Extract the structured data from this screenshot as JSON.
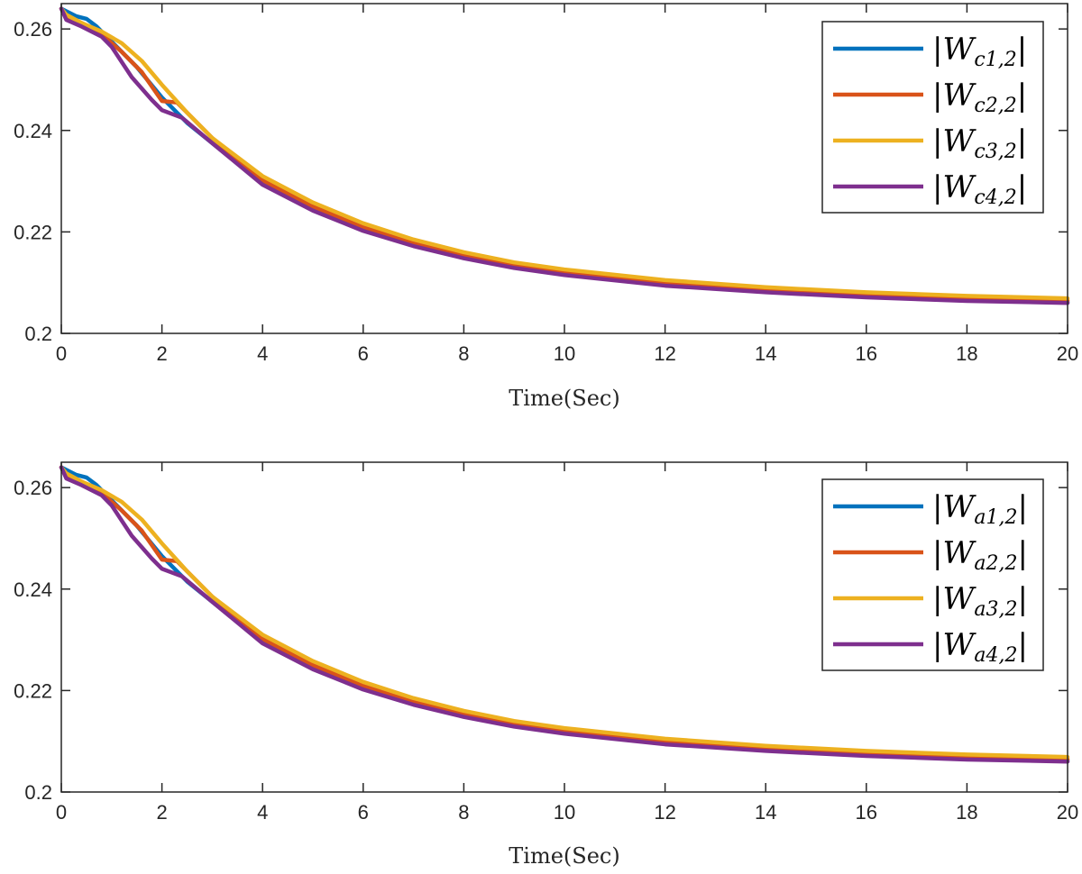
{
  "chart_data": [
    {
      "type": "line",
      "xlabel": "Time(Sec)",
      "ylabel": "",
      "xlim": [
        0,
        20
      ],
      "ylim": [
        0.2,
        0.265
      ],
      "xticks": [
        "0",
        "2",
        "4",
        "6",
        "8",
        "10",
        "12",
        "14",
        "16",
        "18",
        "20"
      ],
      "yticks": [
        "0.2",
        "0.22",
        "0.24",
        "0.26"
      ],
      "grid": false,
      "legend_position": "top-right",
      "series": [
        {
          "name": "|W_{c1,2}|",
          "legend": {
            "sym": "W",
            "sub": "c1,2"
          },
          "color": "#0072BD",
          "points": [
            [
              0,
              0.264
            ],
            [
              0.1,
              0.2635
            ],
            [
              0.3,
              0.2625
            ],
            [
              0.5,
              0.262
            ],
            [
              0.7,
              0.2605
            ],
            [
              1.0,
              0.2575
            ],
            [
              1.5,
              0.2525
            ],
            [
              2.0,
              0.2465
            ],
            [
              2.5,
              0.2415
            ],
            [
              3.0,
              0.2375
            ],
            [
              4.0,
              0.2295
            ],
            [
              5.0,
              0.2245
            ],
            [
              6.0,
              0.2205
            ],
            [
              7.0,
              0.2175
            ],
            [
              8.0,
              0.215
            ],
            [
              9.0,
              0.2131
            ],
            [
              10.0,
              0.2117
            ],
            [
              12.0,
              0.2096
            ],
            [
              14.0,
              0.2083
            ],
            [
              16.0,
              0.2073
            ],
            [
              18.0,
              0.2066
            ],
            [
              20.0,
              0.2062
            ]
          ]
        },
        {
          "name": "|W_{c2,2}|",
          "legend": {
            "sym": "W",
            "sub": "c2,2"
          },
          "color": "#D95319",
          "points": [
            [
              0,
              0.264
            ],
            [
              0.1,
              0.2625
            ],
            [
              0.4,
              0.2612
            ],
            [
              0.8,
              0.259
            ],
            [
              1.2,
              0.2555
            ],
            [
              1.6,
              0.2515
            ],
            [
              2.0,
              0.2458
            ],
            [
              2.3,
              0.2455
            ],
            [
              2.6,
              0.2425
            ],
            [
              3.0,
              0.2385
            ],
            [
              4.0,
              0.2302
            ],
            [
              5.0,
              0.225
            ],
            [
              6.0,
              0.221
            ],
            [
              7.0,
              0.2179
            ],
            [
              8.0,
              0.2154
            ],
            [
              9.0,
              0.2135
            ],
            [
              10.0,
              0.2121
            ],
            [
              12.0,
              0.21
            ],
            [
              14.0,
              0.2087
            ],
            [
              16.0,
              0.2077
            ],
            [
              18.0,
              0.207
            ],
            [
              20.0,
              0.2065
            ]
          ]
        },
        {
          "name": "|W_{c3,2}|",
          "legend": {
            "sym": "W",
            "sub": "c3,2"
          },
          "color": "#EDB120",
          "points": [
            [
              0,
              0.264
            ],
            [
              0.1,
              0.2628
            ],
            [
              0.4,
              0.2612
            ],
            [
              0.8,
              0.2595
            ],
            [
              1.2,
              0.2572
            ],
            [
              1.6,
              0.2537
            ],
            [
              2.0,
              0.249
            ],
            [
              2.5,
              0.2435
            ],
            [
              3.0,
              0.2385
            ],
            [
              4.0,
              0.231
            ],
            [
              5.0,
              0.2258
            ],
            [
              6.0,
              0.2217
            ],
            [
              7.0,
              0.2185
            ],
            [
              8.0,
              0.216
            ],
            [
              9.0,
              0.214
            ],
            [
              10.0,
              0.2126
            ],
            [
              12.0,
              0.2105
            ],
            [
              14.0,
              0.2091
            ],
            [
              16.0,
              0.2081
            ],
            [
              18.0,
              0.2074
            ],
            [
              20.0,
              0.2069
            ]
          ]
        },
        {
          "name": "|W_{c4,2}|",
          "legend": {
            "sym": "W",
            "sub": "c4,2"
          },
          "color": "#7E2F8E",
          "points": [
            [
              0,
              0.264
            ],
            [
              0.1,
              0.2618
            ],
            [
              0.4,
              0.2605
            ],
            [
              0.8,
              0.2585
            ],
            [
              1.0,
              0.2565
            ],
            [
              1.4,
              0.2505
            ],
            [
              1.8,
              0.246
            ],
            [
              2.0,
              0.244
            ],
            [
              2.4,
              0.2425
            ],
            [
              3.0,
              0.2375
            ],
            [
              4.0,
              0.2293
            ],
            [
              5.0,
              0.2242
            ],
            [
              6.0,
              0.2202
            ],
            [
              7.0,
              0.2172
            ],
            [
              8.0,
              0.2148
            ],
            [
              9.0,
              0.2129
            ],
            [
              10.0,
              0.2115
            ],
            [
              12.0,
              0.2094
            ],
            [
              14.0,
              0.2081
            ],
            [
              16.0,
              0.2071
            ],
            [
              18.0,
              0.2064
            ],
            [
              20.0,
              0.206
            ]
          ]
        }
      ]
    },
    {
      "type": "line",
      "xlabel": "Time(Sec)",
      "ylabel": "",
      "xlim": [
        0,
        20
      ],
      "ylim": [
        0.2,
        0.265
      ],
      "xticks": [
        "0",
        "2",
        "4",
        "6",
        "8",
        "10",
        "12",
        "14",
        "16",
        "18",
        "20"
      ],
      "yticks": [
        "0.2",
        "0.22",
        "0.24",
        "0.26"
      ],
      "grid": false,
      "legend_position": "right",
      "series": [
        {
          "name": "|W_{a1,2}|",
          "legend": {
            "sym": "W",
            "sub": "a1,2"
          },
          "color": "#0072BD",
          "points": [
            [
              0,
              0.264
            ],
            [
              0.1,
              0.2635
            ],
            [
              0.3,
              0.2625
            ],
            [
              0.5,
              0.262
            ],
            [
              0.7,
              0.2605
            ],
            [
              1.0,
              0.2575
            ],
            [
              1.5,
              0.2525
            ],
            [
              2.0,
              0.2465
            ],
            [
              2.5,
              0.2415
            ],
            [
              3.0,
              0.2375
            ],
            [
              4.0,
              0.2295
            ],
            [
              5.0,
              0.2245
            ],
            [
              6.0,
              0.2205
            ],
            [
              7.0,
              0.2175
            ],
            [
              8.0,
              0.215
            ],
            [
              9.0,
              0.2131
            ],
            [
              10.0,
              0.2117
            ],
            [
              12.0,
              0.2096
            ],
            [
              14.0,
              0.2083
            ],
            [
              16.0,
              0.2073
            ],
            [
              18.0,
              0.2066
            ],
            [
              20.0,
              0.2062
            ]
          ]
        },
        {
          "name": "|W_{a2,2}|",
          "legend": {
            "sym": "W",
            "sub": "a2,2"
          },
          "color": "#D95319",
          "points": [
            [
              0,
              0.264
            ],
            [
              0.1,
              0.2625
            ],
            [
              0.4,
              0.2612
            ],
            [
              0.8,
              0.259
            ],
            [
              1.2,
              0.2555
            ],
            [
              1.6,
              0.2515
            ],
            [
              2.0,
              0.2458
            ],
            [
              2.3,
              0.2455
            ],
            [
              2.6,
              0.2425
            ],
            [
              3.0,
              0.2385
            ],
            [
              4.0,
              0.2302
            ],
            [
              5.0,
              0.225
            ],
            [
              6.0,
              0.221
            ],
            [
              7.0,
              0.2179
            ],
            [
              8.0,
              0.2154
            ],
            [
              9.0,
              0.2135
            ],
            [
              10.0,
              0.2121
            ],
            [
              12.0,
              0.21
            ],
            [
              14.0,
              0.2087
            ],
            [
              16.0,
              0.2077
            ],
            [
              18.0,
              0.207
            ],
            [
              20.0,
              0.2065
            ]
          ]
        },
        {
          "name": "|W_{a3,2}|",
          "legend": {
            "sym": "W",
            "sub": "a3,2"
          },
          "color": "#EDB120",
          "points": [
            [
              0,
              0.264
            ],
            [
              0.1,
              0.2628
            ],
            [
              0.4,
              0.2612
            ],
            [
              0.8,
              0.2595
            ],
            [
              1.2,
              0.2572
            ],
            [
              1.6,
              0.2537
            ],
            [
              2.0,
              0.249
            ],
            [
              2.5,
              0.2435
            ],
            [
              3.0,
              0.2385
            ],
            [
              4.0,
              0.231
            ],
            [
              5.0,
              0.2258
            ],
            [
              6.0,
              0.2217
            ],
            [
              7.0,
              0.2185
            ],
            [
              8.0,
              0.216
            ],
            [
              9.0,
              0.214
            ],
            [
              10.0,
              0.2126
            ],
            [
              12.0,
              0.2105
            ],
            [
              14.0,
              0.2091
            ],
            [
              16.0,
              0.2081
            ],
            [
              18.0,
              0.2074
            ],
            [
              20.0,
              0.2069
            ]
          ]
        },
        {
          "name": "|W_{a4,2}|",
          "legend": {
            "sym": "W",
            "sub": "a4,2"
          },
          "color": "#7E2F8E",
          "points": [
            [
              0,
              0.264
            ],
            [
              0.1,
              0.2618
            ],
            [
              0.4,
              0.2605
            ],
            [
              0.8,
              0.2585
            ],
            [
              1.0,
              0.2565
            ],
            [
              1.4,
              0.2505
            ],
            [
              1.8,
              0.246
            ],
            [
              2.0,
              0.244
            ],
            [
              2.4,
              0.2425
            ],
            [
              3.0,
              0.2375
            ],
            [
              4.0,
              0.2293
            ],
            [
              5.0,
              0.2242
            ],
            [
              6.0,
              0.2202
            ],
            [
              7.0,
              0.2172
            ],
            [
              8.0,
              0.2148
            ],
            [
              9.0,
              0.2129
            ],
            [
              10.0,
              0.2115
            ],
            [
              12.0,
              0.2094
            ],
            [
              14.0,
              0.2081
            ],
            [
              16.0,
              0.2071
            ],
            [
              18.0,
              0.2064
            ],
            [
              20.0,
              0.206
            ]
          ]
        }
      ]
    }
  ]
}
